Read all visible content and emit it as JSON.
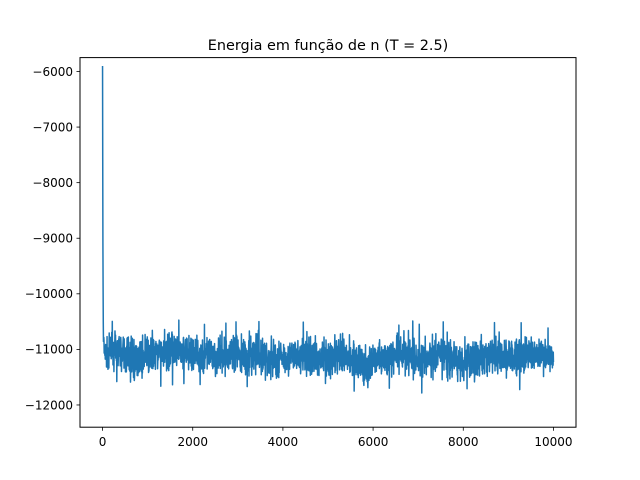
{
  "chart_data": {
    "type": "line",
    "title": "Energia em função de n (T = 2.5)",
    "xlabel": "",
    "ylabel": "",
    "xlim": [
      -500,
      10500
    ],
    "ylim": [
      -12400,
      -5750
    ],
    "xticks": [
      0,
      2000,
      4000,
      6000,
      8000,
      10000
    ],
    "yticks": [
      -12000,
      -11000,
      -10000,
      -9000,
      -8000,
      -7000,
      -6000
    ],
    "xtick_labels": [
      "0",
      "2000",
      "4000",
      "6000",
      "8000",
      "10000"
    ],
    "ytick_labels": [
      "−12000",
      "−11000",
      "−10000",
      "−9000",
      "−8000",
      "−7000",
      "−6000"
    ],
    "grid": false,
    "series_color": "#1f77b4",
    "series": [
      {
        "x": [
          0,
          10,
          20,
          30,
          50,
          80,
          120,
          200,
          400,
          700,
          1000,
          1400,
          2000,
          2500,
          3000,
          3500,
          3700,
          4000,
          4500,
          5000,
          5500,
          5900,
          6000,
          6500,
          6600,
          7000,
          7500,
          8000,
          8500,
          9000,
          9500,
          10000
        ],
        "values": [
          -5900,
          -9500,
          -10500,
          -10900,
          -11200,
          -11300,
          -11200,
          -11100,
          -11250,
          -11150,
          -11200,
          -11100,
          -11150,
          -11200,
          -11100,
          -11200,
          -11150,
          -11100,
          -11200,
          -11150,
          -11250,
          -11200,
          -11150,
          -11200,
          -11100,
          -11150,
          -11200,
          -11150,
          -11100,
          -11200,
          -11150,
          -11150
        ],
        "band_min": [
          -5900,
          -11000,
          -11400,
          -11450,
          -11400,
          -11500,
          -11600,
          -11550,
          -11600,
          -11900,
          -11700,
          -11650,
          -11600,
          -11700,
          -11650,
          -11700,
          -11950,
          -11650,
          -11700,
          -11750,
          -11650,
          -12150,
          -11700,
          -11700,
          -11650,
          -11800,
          -11700,
          -11900,
          -11700,
          -11750,
          -11700,
          -11550
        ],
        "band_max": [
          -5900,
          -9000,
          -10400,
          -10600,
          -10700,
          -10600,
          -10550,
          -10500,
          -10450,
          -10550,
          -10500,
          -10400,
          -10550,
          -10550,
          -10500,
          -10500,
          -10450,
          -10600,
          -10500,
          -10550,
          -10500,
          -10700,
          -10600,
          -10500,
          -10350,
          -10550,
          -10500,
          -10550,
          -10500,
          -10550,
          -10500,
          -10650
        ]
      }
    ]
  }
}
